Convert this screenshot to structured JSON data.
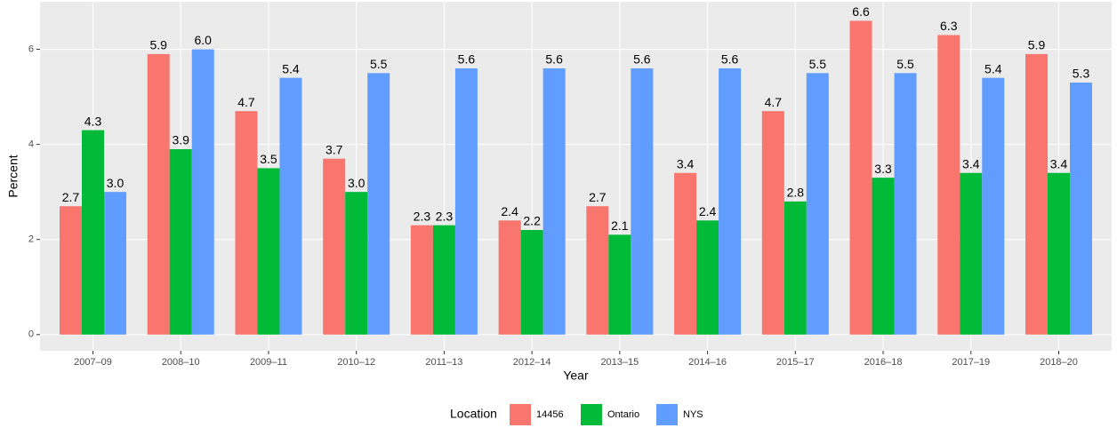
{
  "chart_data": {
    "type": "bar",
    "x_label": "Year",
    "y_label": "Percent",
    "legend_title": "Location",
    "legend": "bottom",
    "grid": true,
    "categories": [
      "2007–09",
      "2008–10",
      "2009–11",
      "2010–12",
      "2011–13",
      "2012–14",
      "2013–15",
      "2014–16",
      "2015–17",
      "2016–18",
      "2017–19",
      "2018–20"
    ],
    "series": [
      {
        "name": "14456",
        "color": "#f8766d",
        "values": [
          2.7,
          5.9,
          4.7,
          3.7,
          2.3,
          2.4,
          2.7,
          3.4,
          4.7,
          6.6,
          6.3,
          5.9
        ],
        "value_labels": [
          "2.7",
          "5.9",
          "4.7",
          "3.7",
          "2.3",
          "2.4",
          "2.7",
          "3.4",
          "4.7",
          "6.6",
          "6.3",
          "5.9"
        ]
      },
      {
        "name": "Ontario",
        "color": "#00ba38",
        "values": [
          4.3,
          3.9,
          3.5,
          3.0,
          2.3,
          2.2,
          2.1,
          2.4,
          2.8,
          3.3,
          3.4,
          3.4
        ],
        "value_labels": [
          "4.3",
          "3.9",
          "3.5",
          "3.0",
          "2.3",
          "2.2",
          "2.1",
          "2.4",
          "2.8",
          "3.3",
          "3.4",
          "3.4"
        ]
      },
      {
        "name": "NYS",
        "color": "#619cff",
        "values": [
          3.0,
          6.0,
          5.4,
          5.5,
          5.6,
          5.6,
          5.6,
          5.6,
          5.5,
          5.5,
          5.4,
          5.3
        ],
        "value_labels": [
          "3.0",
          "6.0",
          "5.4",
          "5.5",
          "5.6",
          "5.6",
          "5.6",
          "5.6",
          "5.5",
          "5.5",
          "5.4",
          "5.3"
        ]
      }
    ],
    "ylim": [
      -0.34,
      7.0
    ],
    "yticks": [
      0,
      2,
      4,
      6
    ]
  }
}
